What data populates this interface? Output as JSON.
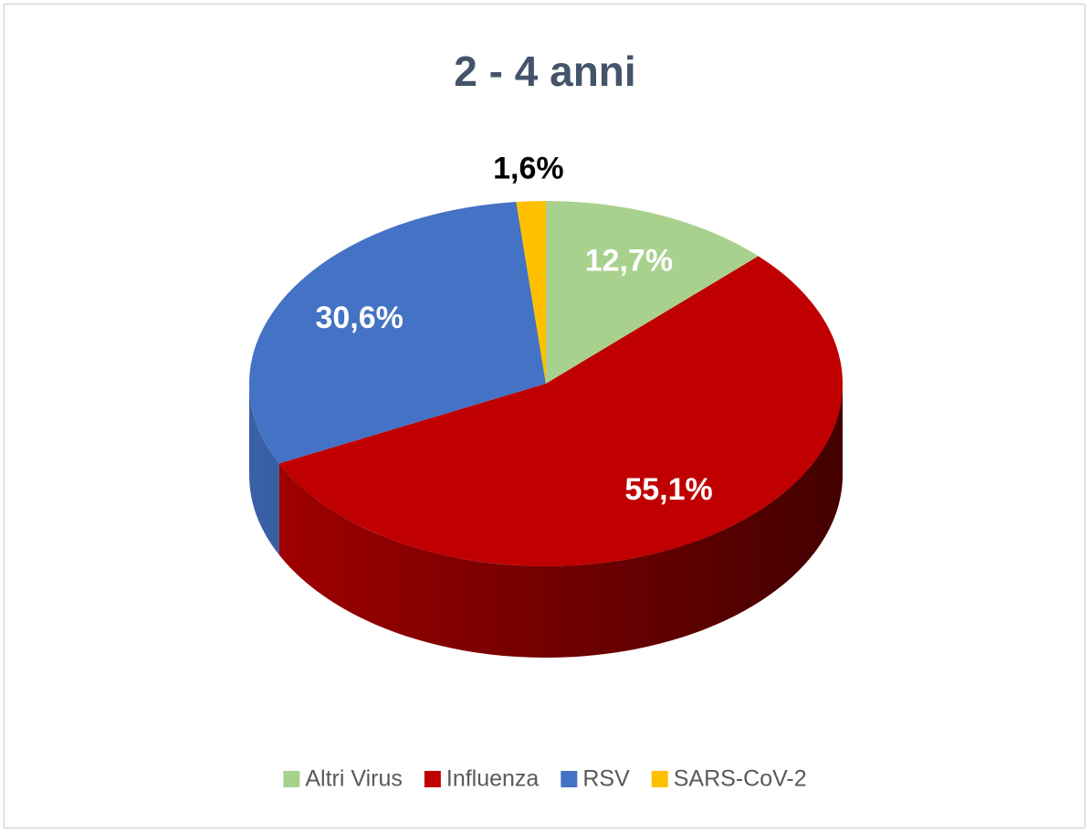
{
  "chart_data": {
    "type": "pie",
    "title": "2 - 4 anni",
    "categories": [
      "Altri Virus",
      "Influenza",
      "RSV",
      "SARS-CoV-2"
    ],
    "values": [
      12.7,
      55.1,
      30.6,
      1.6
    ],
    "value_labels": [
      "12,7%",
      "55,1%",
      "30,6%",
      "1,6%"
    ],
    "colors": [
      "#a9d18e",
      "#c00000",
      "#4472c4",
      "#ffc000"
    ],
    "legend": "bottom"
  }
}
